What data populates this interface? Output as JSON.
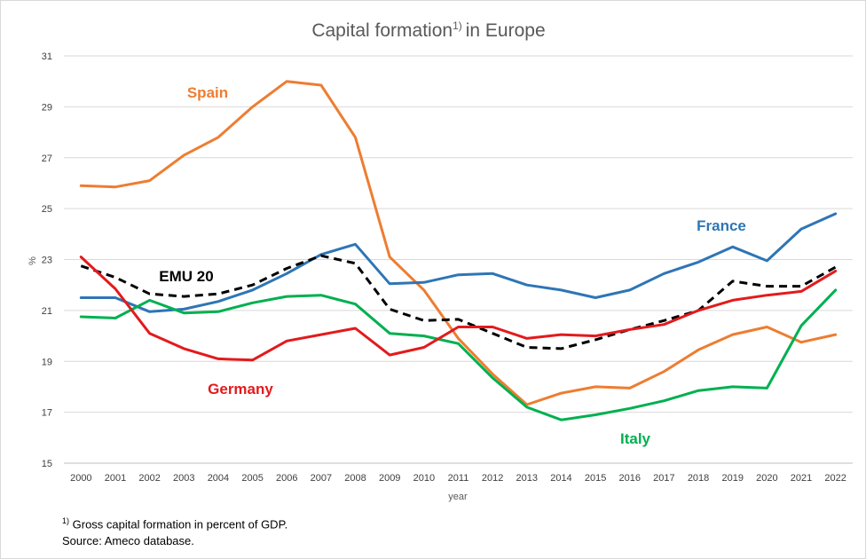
{
  "chart_data": {
    "type": "line",
    "title": "Capital formation",
    "title_superscript": "1)",
    "title_suffix": "in Europe",
    "xlabel": "year",
    "ylabel": "%",
    "ylim": [
      15,
      31
    ],
    "yticks": [
      15,
      17,
      19,
      21,
      23,
      25,
      27,
      29,
      31
    ],
    "grid": "horizontal",
    "categories": [
      "2000",
      "2001",
      "2002",
      "2003",
      "2004",
      "2005",
      "2006",
      "2007",
      "2008",
      "2009",
      "2010",
      "2011",
      "2012",
      "2013",
      "2014",
      "2015",
      "2016",
      "2017",
      "2018",
      "2019",
      "2020",
      "2021",
      "2022"
    ],
    "series": [
      {
        "name": "Spain",
        "color": "#ed7d31",
        "dash": false,
        "values": [
          25.9,
          25.85,
          26.1,
          27.1,
          27.8,
          29.0,
          30.0,
          29.85,
          27.8,
          23.1,
          21.8,
          19.9,
          18.5,
          17.3,
          17.75,
          18.0,
          17.95,
          18.6,
          19.45,
          20.05,
          20.35,
          19.75,
          20.05
        ]
      },
      {
        "name": "France",
        "color": "#2e75b6",
        "dash": false,
        "values": [
          21.5,
          21.5,
          20.95,
          21.05,
          21.35,
          21.8,
          22.45,
          23.2,
          23.6,
          22.05,
          22.1,
          22.4,
          22.45,
          22.0,
          21.8,
          21.5,
          21.8,
          22.45,
          22.9,
          23.5,
          22.95,
          24.2,
          24.8
        ]
      },
      {
        "name": "EMU 20",
        "color": "#000000",
        "dash": true,
        "values": [
          22.75,
          22.3,
          21.65,
          21.55,
          21.65,
          22.0,
          22.65,
          23.15,
          22.85,
          21.05,
          20.6,
          20.65,
          20.1,
          19.55,
          19.5,
          19.85,
          20.25,
          20.6,
          21.0,
          22.15,
          21.95,
          21.95,
          22.7
        ]
      },
      {
        "name": "Italy",
        "color": "#00b050",
        "dash": false,
        "values": [
          20.75,
          20.7,
          21.4,
          20.9,
          20.95,
          21.3,
          21.55,
          21.6,
          21.25,
          20.1,
          20.0,
          19.7,
          18.35,
          17.2,
          16.7,
          16.9,
          17.15,
          17.45,
          17.85,
          18.0,
          17.95,
          20.4,
          21.8
        ]
      },
      {
        "name": "Germany",
        "color": "#e31a1c",
        "dash": false,
        "values": [
          23.1,
          21.85,
          20.1,
          19.5,
          19.1,
          19.05,
          19.8,
          20.05,
          20.3,
          19.25,
          19.55,
          20.35,
          20.35,
          19.9,
          20.05,
          20.0,
          20.25,
          20.45,
          21.0,
          21.4,
          21.6,
          21.75,
          22.55
        ]
      }
    ],
    "labels": [
      {
        "text": "Spain",
        "color": "#ed7d31"
      },
      {
        "text": "France",
        "color": "#2e75b6"
      },
      {
        "text": "EMU 20",
        "color": "#000000"
      },
      {
        "text": "Germany",
        "color": "#e31a1c"
      },
      {
        "text": "Italy",
        "color": "#00b050"
      }
    ]
  },
  "footnote": {
    "marker": "1)",
    "text": "Gross capital formation in percent of GDP.",
    "source": "Source: Ameco database."
  }
}
